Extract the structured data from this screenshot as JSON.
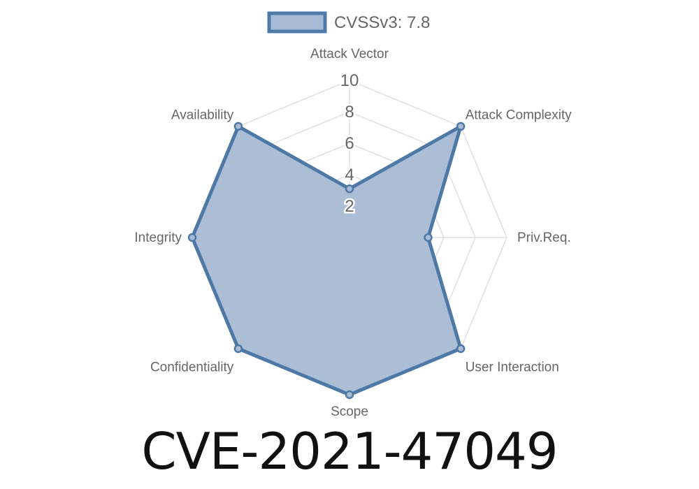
{
  "chart_data": {
    "type": "radar",
    "title": "",
    "legend": {
      "label": "CVSSv3: 7.8",
      "placement": "top"
    },
    "axes": [
      "Attack Vector",
      "Attack Complexity",
      "Priv.Req.",
      "User Interaction",
      "Scope",
      "Confidentiality",
      "Integrity",
      "Availability"
    ],
    "series": [
      {
        "name": "CVSSv3: 7.8",
        "values": [
          3.1,
          10,
          5,
          10,
          10,
          10,
          10,
          10
        ]
      }
    ],
    "rlim": [
      0,
      10
    ],
    "ticks": [
      "2",
      "4",
      "6",
      "8",
      "10"
    ],
    "grid": true,
    "colors": {
      "line": "#4e79a7",
      "fill": "#a7bbd4",
      "grid": "#e0e0e0",
      "label": "#666666"
    }
  },
  "footer": {
    "cve_id": "CVE-2021-47049"
  }
}
